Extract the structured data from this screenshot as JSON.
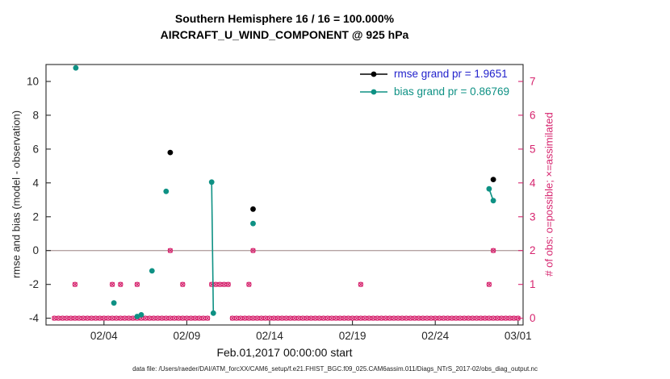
{
  "caption": "data file: /Users/raeder/DAI/ATM_forcXX/CAM6_setup/f.e21.FHIST_BGC.f09_025.CAM6assim.011/Diags_NTrS_2017-02/obs_diag_output.nc",
  "chart_data": {
    "type": "scatter",
    "title": "Southern Hemisphere 16 / 16 = 100.000%",
    "subtitle": "AIRCRAFT_U_WIND_COMPONENT @ 925 hPa",
    "xlabel": "Feb.01,2017 00:00:00 start",
    "ylabel_left": "rmse and bias (model - observation)",
    "ylabel_right": "# of obs: o=possible; ×=assimilated",
    "xlim": [
      0.5,
      29.3
    ],
    "ylim_left": [
      -4.4,
      11.0
    ],
    "ylim_right": [
      -0.2,
      7.5
    ],
    "x_ticks": {
      "values": [
        4,
        9,
        14,
        19,
        24,
        29
      ],
      "labels": [
        "02/04",
        "02/09",
        "02/14",
        "02/19",
        "02/24",
        "03/01"
      ]
    },
    "y_ticks_left": [
      -4,
      -2,
      0,
      2,
      4,
      6,
      8,
      10
    ],
    "y_ticks_right": [
      0,
      1,
      2,
      3,
      4,
      5,
      6,
      7
    ],
    "zero_line": 0,
    "colors": {
      "axis": "#262626",
      "rmse": "#000000",
      "bias": "#0e9184",
      "obs": "#d6246e",
      "zero_line": "#b5a3a3"
    },
    "legend": [
      {
        "label": "rmse grand pr = 1.9651",
        "line_color": "#000000",
        "text_color": "#2222cc"
      },
      {
        "label": "bias grand pr = 0.86769",
        "line_color": "#0e9184",
        "text_color": "#0e9184"
      }
    ],
    "series": {
      "rmse": {
        "axis": "left",
        "marker": "filled-circle",
        "points": [
          [
            8.0,
            5.8
          ],
          [
            13.0,
            2.45
          ],
          [
            27.5,
            4.2
          ]
        ]
      },
      "bias": {
        "axis": "left",
        "marker": "filled-circle",
        "segments": [
          [
            [
              2.3,
              10.8
            ]
          ],
          [
            [
              4.6,
              -3.1
            ]
          ],
          [
            [
              6.0,
              -3.9
            ],
            [
              6.25,
              -3.8
            ]
          ],
          [
            [
              6.9,
              -1.2
            ]
          ],
          [
            [
              7.75,
              3.5
            ]
          ],
          [
            [
              10.5,
              4.05
            ],
            [
              10.6,
              -3.7
            ]
          ],
          [
            [
              13.0,
              1.6
            ]
          ],
          [
            [
              27.25,
              3.65
            ],
            [
              27.5,
              2.95
            ]
          ]
        ]
      },
      "obs": {
        "axis": "right",
        "marker": "circle-x",
        "points": [
          [
            2.25,
            1
          ],
          [
            4.5,
            1
          ],
          [
            5.0,
            1
          ],
          [
            6.0,
            1
          ],
          [
            8.75,
            1
          ],
          [
            10.5,
            1
          ],
          [
            10.75,
            1
          ],
          [
            11.0,
            1
          ],
          [
            11.25,
            1
          ],
          [
            11.5,
            1
          ],
          [
            12.75,
            1
          ],
          [
            19.5,
            1
          ],
          [
            27.25,
            1
          ],
          [
            8.0,
            2
          ],
          [
            13.0,
            2
          ],
          [
            27.5,
            2
          ]
        ],
        "zero_run": {
          "start": 1.0,
          "end": 29.0,
          "step": 0.25,
          "skip": [
            10.5,
            10.75,
            11.0,
            11.25,
            11.5
          ]
        }
      }
    }
  }
}
